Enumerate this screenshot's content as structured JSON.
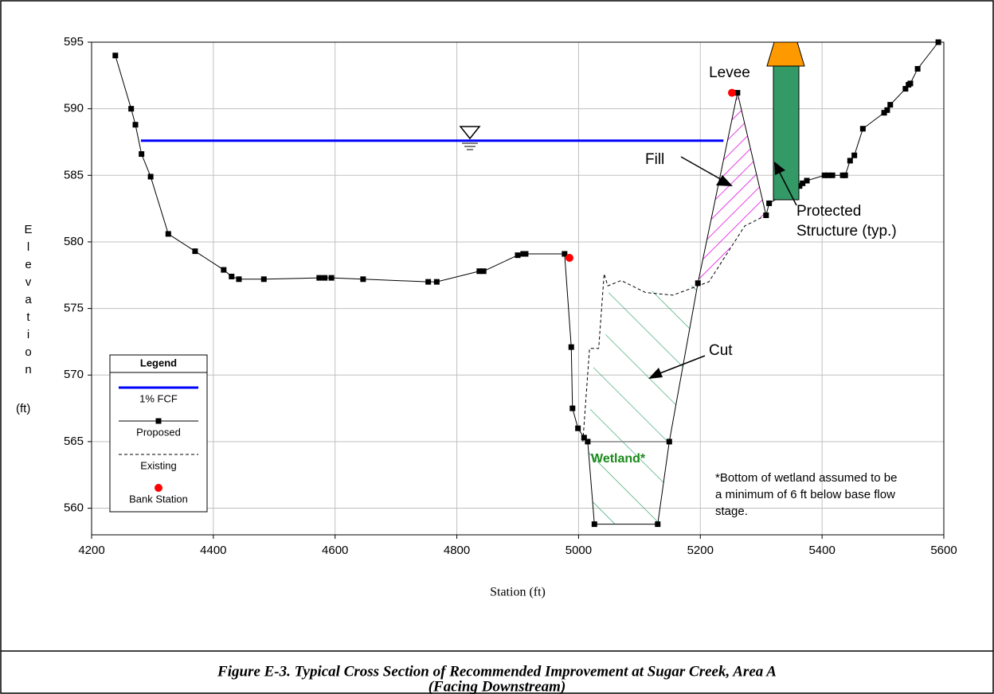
{
  "chart_data": {
    "type": "line",
    "x_label": "Station (ft)",
    "y_label": "Elevation",
    "y_unit": "(ft)",
    "xlim": [
      4200,
      5600
    ],
    "ylim": [
      558,
      595
    ],
    "xticks": [
      4200,
      4400,
      4600,
      4800,
      5000,
      5200,
      5400,
      5600
    ],
    "yticks": [
      560,
      565,
      570,
      575,
      580,
      585,
      590,
      595
    ],
    "grid": true,
    "legend_title": "Legend",
    "series": [
      {
        "name": "1% FCF",
        "color": "#0000ff",
        "linestyle": "solid",
        "marker": "none",
        "x": [
          4281,
          5238
        ],
        "values": [
          587.6,
          587.6
        ]
      },
      {
        "name": "Proposed",
        "color": "#000000",
        "linestyle": "solid",
        "marker": "square",
        "x": [
          4239,
          4265,
          4272,
          4282,
          4297,
          4326,
          4370,
          4417,
          4430,
          4442,
          4483,
          4574,
          4583,
          4594,
          4646,
          4753,
          4767,
          4837,
          4844,
          4900,
          4909,
          4913,
          4977,
          4988,
          4990,
          4999,
          5009,
          5015,
          5026,
          5130,
          5149,
          5196,
          5261,
          5308,
          5313,
          5363,
          5368,
          5375,
          5404,
          5410,
          5417,
          5434,
          5438,
          5446,
          5453,
          5467,
          5502,
          5507,
          5512,
          5537,
          5542,
          5545,
          5557,
          5591
        ],
        "values": [
          594.0,
          590.0,
          588.8,
          586.6,
          584.9,
          580.6,
          579.3,
          577.9,
          577.4,
          577.2,
          577.2,
          577.3,
          577.3,
          577.3,
          577.2,
          577.0,
          577.0,
          577.8,
          577.8,
          579.0,
          579.1,
          579.1,
          579.1,
          572.1,
          567.5,
          566.0,
          565.3,
          565.0,
          558.8,
          558.8,
          565.0,
          576.9,
          591.2,
          582.0,
          582.9,
          584.2,
          584.4,
          584.6,
          585.0,
          585.0,
          585.0,
          585.0,
          585.0,
          586.1,
          586.5,
          588.5,
          589.7,
          589.9,
          590.3,
          591.5,
          591.8,
          591.9,
          593.0,
          595.0
        ]
      },
      {
        "name": "Existing",
        "color": "#000000",
        "linestyle": "dashed",
        "marker": "none",
        "x": [
          5007,
          5018,
          5033,
          5042,
          5048,
          5070,
          5110,
          5155,
          5214,
          5273,
          5308
        ],
        "values": [
          565.0,
          572.0,
          572.0,
          577.6,
          576.7,
          577.1,
          576.2,
          576.0,
          577.0,
          581.2,
          582.0
        ]
      },
      {
        "name": "Bank Station",
        "color": "#ff0000",
        "linestyle": "none",
        "marker": "circle",
        "x": [
          4985,
          5252
        ],
        "values": [
          578.8,
          591.2
        ]
      }
    ],
    "annotations": [
      "Levee",
      "Fill",
      "Cut",
      "Protected",
      "Structure (typ.)",
      "Wetland*"
    ],
    "note": [
      "*Bottom of wetland assumed to be",
      "a minimum of 6 ft below base flow",
      "stage."
    ],
    "caption": [
      "Figure E-3.  Typical Cross Section of Recommended Improvement at Sugar Creek, Area A",
      "(Facing Downstream)"
    ]
  }
}
